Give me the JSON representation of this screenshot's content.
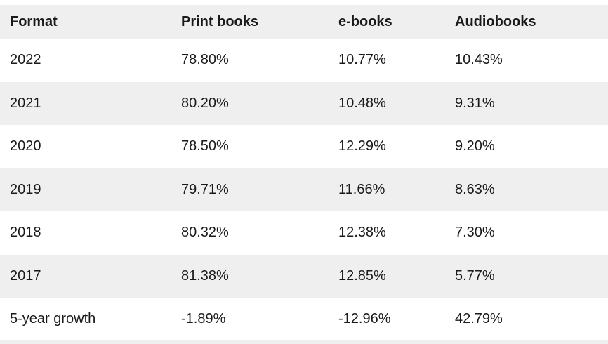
{
  "colors": {
    "stripe": "#efefef",
    "text": "#1a1a1a",
    "background": "#ffffff"
  },
  "chart_data": {
    "type": "table",
    "title": "",
    "columns": [
      "Format",
      "Print books",
      "e-books",
      "Audiobooks"
    ],
    "rows": [
      {
        "label": "2022",
        "values": [
          "78.80%",
          "10.77%",
          "10.43%"
        ]
      },
      {
        "label": "2021",
        "values": [
          "80.20%",
          "10.48%",
          "9.31%"
        ]
      },
      {
        "label": "2020",
        "values": [
          "78.50%",
          "12.29%",
          "9.20%"
        ]
      },
      {
        "label": "2019",
        "values": [
          "79.71%",
          "11.66%",
          "8.63%"
        ]
      },
      {
        "label": "2018",
        "values": [
          "80.32%",
          "12.38%",
          "7.30%"
        ]
      },
      {
        "label": "2017",
        "values": [
          "81.38%",
          "12.85%",
          "5.77%"
        ]
      },
      {
        "label": "5-year growth",
        "values": [
          "-1.89%",
          "-12.96%",
          "42.79%"
        ]
      }
    ]
  },
  "table": {
    "headers": {
      "format": "Format",
      "print_books": "Print books",
      "ebooks": "e-books",
      "audiobooks": "Audiobooks"
    },
    "rows": [
      {
        "label": "2022",
        "values": [
          "78.80%",
          "10.77%",
          "10.43%"
        ]
      },
      {
        "label": "2021",
        "values": [
          "80.20%",
          "10.48%",
          "9.31%"
        ]
      },
      {
        "label": "2020",
        "values": [
          "78.50%",
          "12.29%",
          "9.20%"
        ]
      },
      {
        "label": "2019",
        "values": [
          "79.71%",
          "11.66%",
          "8.63%"
        ]
      },
      {
        "label": "2018",
        "values": [
          "80.32%",
          "12.38%",
          "7.30%"
        ]
      },
      {
        "label": "2017",
        "values": [
          "81.38%",
          "12.85%",
          "5.77%"
        ]
      },
      {
        "label": "5-year growth",
        "values": [
          "-1.89%",
          "-12.96%",
          "42.79%"
        ]
      }
    ]
  }
}
